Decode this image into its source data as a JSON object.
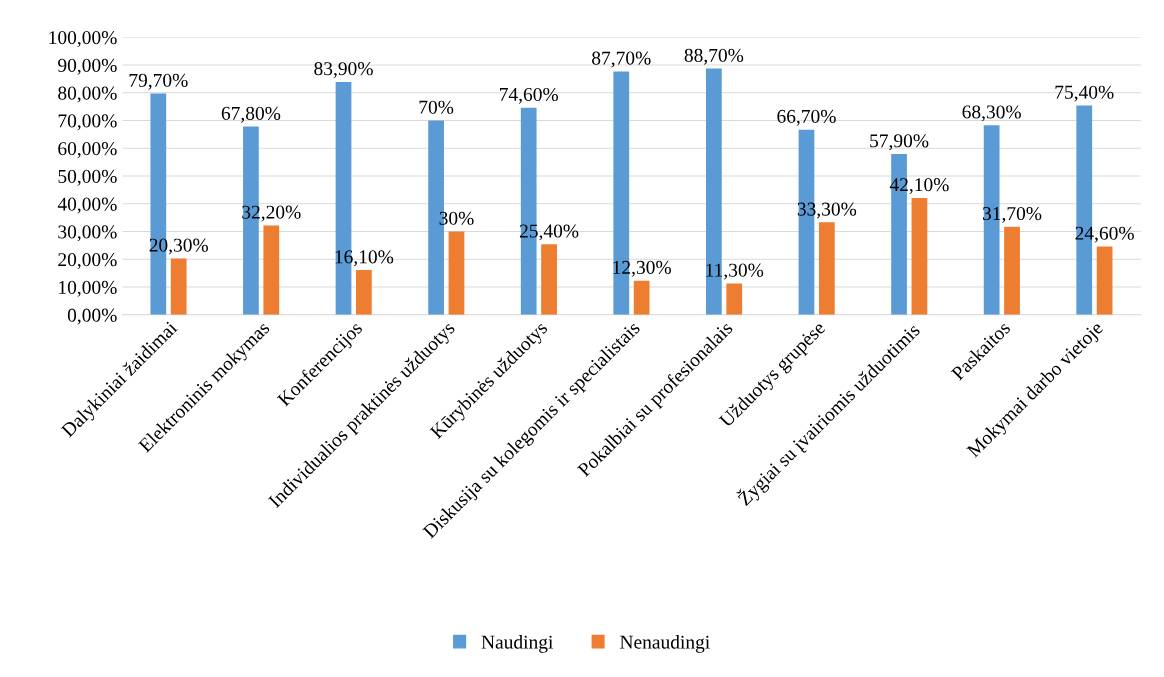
{
  "chart_data": {
    "type": "bar",
    "categories": [
      "Dalykiniai žaidimai",
      "Elektroninis mokymas",
      "Konferencijos",
      "Individualios praktinės užduotys",
      "Kūrybinės užduotys",
      "Diskusija su kolegomis ir specialistais",
      "Pokalbiai su profesionalais",
      "Užduotys grupėse",
      "Žygiai su įvairiomis užduotimis",
      "Paskaitos",
      "Mokymai darbo vietoje"
    ],
    "series": [
      {
        "name": "Naudingi",
        "color": "#5b9bd5",
        "values": [
          79.7,
          67.8,
          83.9,
          70,
          74.6,
          87.7,
          88.7,
          66.7,
          57.9,
          68.3,
          75.4
        ],
        "value_labels": [
          "79,70%",
          "67,80%",
          "83,90%",
          "70%",
          "74,60%",
          "87,70%",
          "88,70%",
          "66,70%",
          "57,90%",
          "68,30%",
          "75,40%"
        ]
      },
      {
        "name": "Nenaudingi",
        "color": "#ed7d31",
        "values": [
          20.3,
          32.2,
          16.1,
          30,
          25.4,
          12.3,
          11.3,
          33.3,
          42.1,
          31.7,
          24.6
        ],
        "value_labels": [
          "20,30%",
          "32,20%",
          "16,10%",
          "30%",
          "25,40%",
          "12,30%",
          "11,30%",
          "33,30%",
          "42,10%",
          "31,70%",
          "24,60%"
        ]
      }
    ],
    "ylim": [
      0,
      100
    ],
    "yticks": [
      {
        "value": 0,
        "label": "0,00%"
      },
      {
        "value": 10,
        "label": "10,00%"
      },
      {
        "value": 20,
        "label": "20,00%"
      },
      {
        "value": 30,
        "label": "30,00%"
      },
      {
        "value": 40,
        "label": "40,00%"
      },
      {
        "value": 50,
        "label": "50,00%"
      },
      {
        "value": 60,
        "label": "60,00%"
      },
      {
        "value": 70,
        "label": "70,00%"
      },
      {
        "value": 80,
        "label": "80,00%"
      },
      {
        "value": 90,
        "label": "90,00%"
      },
      {
        "value": 100,
        "label": "100,00%"
      }
    ],
    "grid": "y",
    "legend": "bottom"
  }
}
